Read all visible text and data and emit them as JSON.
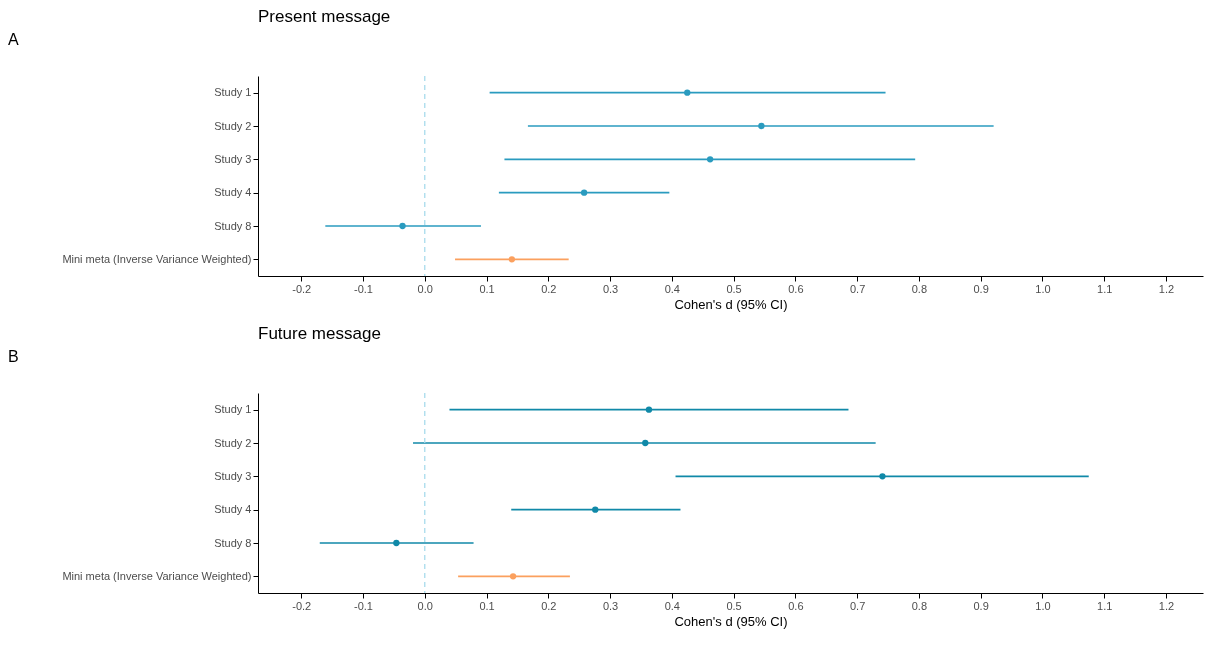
{
  "chart_data": [
    {
      "type": "scatter",
      "title": "Present message",
      "xlabel": "Cohen's d (95% CI)",
      "orientation": "horizontal",
      "marker": "circle",
      "grid": false,
      "annotations": [
        "A"
      ],
      "categories": [
        "Study 1",
        "Study 2",
        "Study 3",
        "Study 4",
        "Study 8",
        "Mini meta (Inverse Variance Weighted)"
      ],
      "values": [
        0.425,
        0.545,
        0.462,
        0.258,
        -0.036,
        0.141
      ],
      "errors": [
        [
          0.105,
          0.746
        ],
        [
          0.167,
          0.921
        ],
        [
          0.129,
          0.794
        ],
        [
          0.12,
          0.396
        ],
        [
          -0.161,
          0.091
        ],
        [
          0.049,
          0.233
        ]
      ],
      "colors": [
        "#2a9bbf",
        "#2a9bbf",
        "#2a9bbf",
        "#2a9bbf",
        "#2a9bbf",
        "#fba05e"
      ],
      "xlim": [
        -0.27,
        1.26
      ],
      "xticks": [
        -0.2,
        -0.1,
        {
          "value": 0,
          "label": "0.0"
        },
        0.1,
        0.2,
        0.3,
        0.4,
        0.5,
        0.6,
        0.7,
        0.8,
        0.9,
        {
          "value": 1,
          "label": "1.0"
        },
        1.1,
        1.2
      ],
      "ref_lines": [
        {
          "axis": "x",
          "value": 0,
          "label": null,
          "color": "#a8dcec",
          "line_style": "dashed"
        }
      ]
    },
    {
      "type": "scatter",
      "title": "Future message",
      "xlabel": "Cohen's d (95% CI)",
      "orientation": "horizontal",
      "marker": "circle",
      "grid": false,
      "annotations": [
        "B"
      ],
      "categories": [
        "Study 1",
        "Study 2",
        "Study 3",
        "Study 4",
        "Study 8",
        "Mini meta (Inverse Variance Weighted)"
      ],
      "values": [
        0.363,
        0.357,
        0.741,
        0.276,
        -0.046,
        0.143
      ],
      "errors": [
        [
          0.04,
          0.686
        ],
        [
          -0.019,
          0.73
        ],
        [
          0.406,
          1.075
        ],
        [
          0.14,
          0.414
        ],
        [
          -0.17,
          0.079
        ],
        [
          0.054,
          0.235
        ]
      ],
      "colors": [
        "#1089a8",
        "#1089a8",
        "#1089a8",
        "#1089a8",
        "#1089a8",
        "#fba05e"
      ],
      "xlim": [
        -0.27,
        1.26
      ],
      "xticks": [
        -0.2,
        -0.1,
        {
          "value": 0,
          "label": "0.0"
        },
        0.1,
        0.2,
        0.3,
        0.4,
        0.5,
        0.6,
        0.7,
        0.8,
        0.9,
        {
          "value": 1,
          "label": "1.0"
        },
        1.1,
        1.2
      ],
      "ref_lines": [
        {
          "axis": "x",
          "value": 0,
          "label": null,
          "color": "#a8dcec",
          "line_style": "dashed"
        }
      ]
    }
  ]
}
